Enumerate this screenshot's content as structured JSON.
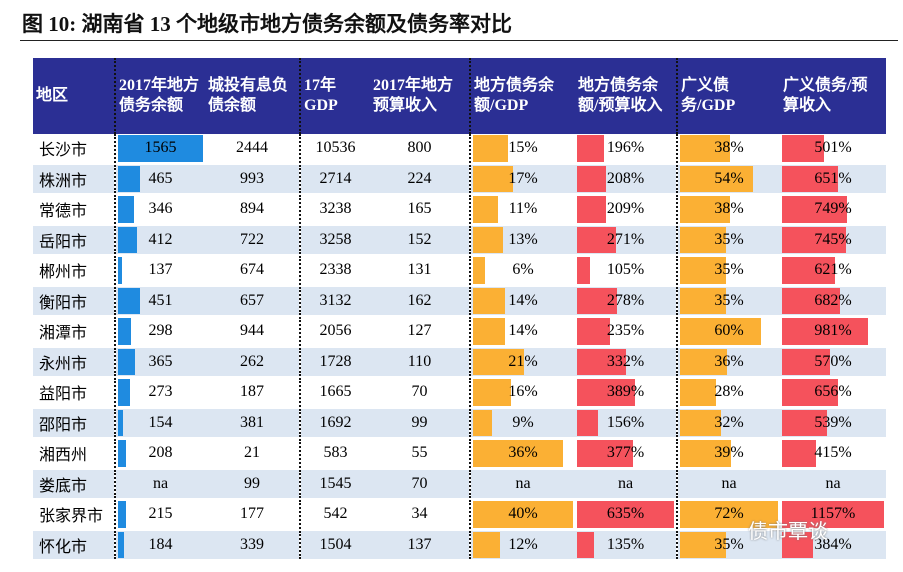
{
  "title": "图 10:  湖南省 13 个地级市地方债务余额及债务率对比",
  "headers": [
    "地区",
    "2017年地方债务余额",
    "城投有息负债余额",
    "17年GDP",
    "2017年地方预算收入",
    "地方债务余额/GDP",
    "地方债务余额/预算收入",
    "广义债务/GDP",
    "广义债务/预算收入"
  ],
  "colors": {
    "header": "#2b2f94",
    "blue_bar": "#1f8be0",
    "orange_bar": "#fbb034",
    "red_bar": "#f5525c",
    "alt_row": "#dce6f2"
  },
  "rows": [
    [
      "长沙市",
      "1565",
      "2444",
      "10536",
      "800",
      "15%",
      "196%",
      "38%",
      "501%"
    ],
    [
      "株洲市",
      "465",
      "993",
      "2714",
      "224",
      "17%",
      "208%",
      "54%",
      "651%"
    ],
    [
      "常德市",
      "346",
      "894",
      "3238",
      "165",
      "11%",
      "209%",
      "38%",
      "749%"
    ],
    [
      "岳阳市",
      "412",
      "722",
      "3258",
      "152",
      "13%",
      "271%",
      "35%",
      "745%"
    ],
    [
      "郴州市",
      "137",
      "674",
      "2338",
      "131",
      "6%",
      "105%",
      "35%",
      "621%"
    ],
    [
      "衡阳市",
      "451",
      "657",
      "3132",
      "162",
      "14%",
      "278%",
      "35%",
      "682%"
    ],
    [
      "湘潭市",
      "298",
      "944",
      "2056",
      "127",
      "14%",
      "235%",
      "60%",
      "981%"
    ],
    [
      "永州市",
      "365",
      "262",
      "1728",
      "110",
      "21%",
      "332%",
      "36%",
      "570%"
    ],
    [
      "益阳市",
      "273",
      "187",
      "1665",
      "70",
      "16%",
      "389%",
      "28%",
      "656%"
    ],
    [
      "邵阳市",
      "154",
      "381",
      "1692",
      "99",
      "9%",
      "156%",
      "32%",
      "539%"
    ],
    [
      "湘西州",
      "208",
      "21",
      "583",
      "55",
      "36%",
      "377%",
      "39%",
      "415%"
    ],
    [
      "娄底市",
      "na",
      "99",
      "1545",
      "70",
      "na",
      "na",
      "na",
      "na"
    ],
    [
      "张家界市",
      "215",
      "177",
      "542",
      "34",
      "40%",
      "635%",
      "72%",
      "1157%"
    ],
    [
      "怀化市",
      "184",
      "339",
      "1504",
      "137",
      "12%",
      "135%",
      "35%",
      "384%"
    ]
  ],
  "watermark": "债市覃谈"
}
